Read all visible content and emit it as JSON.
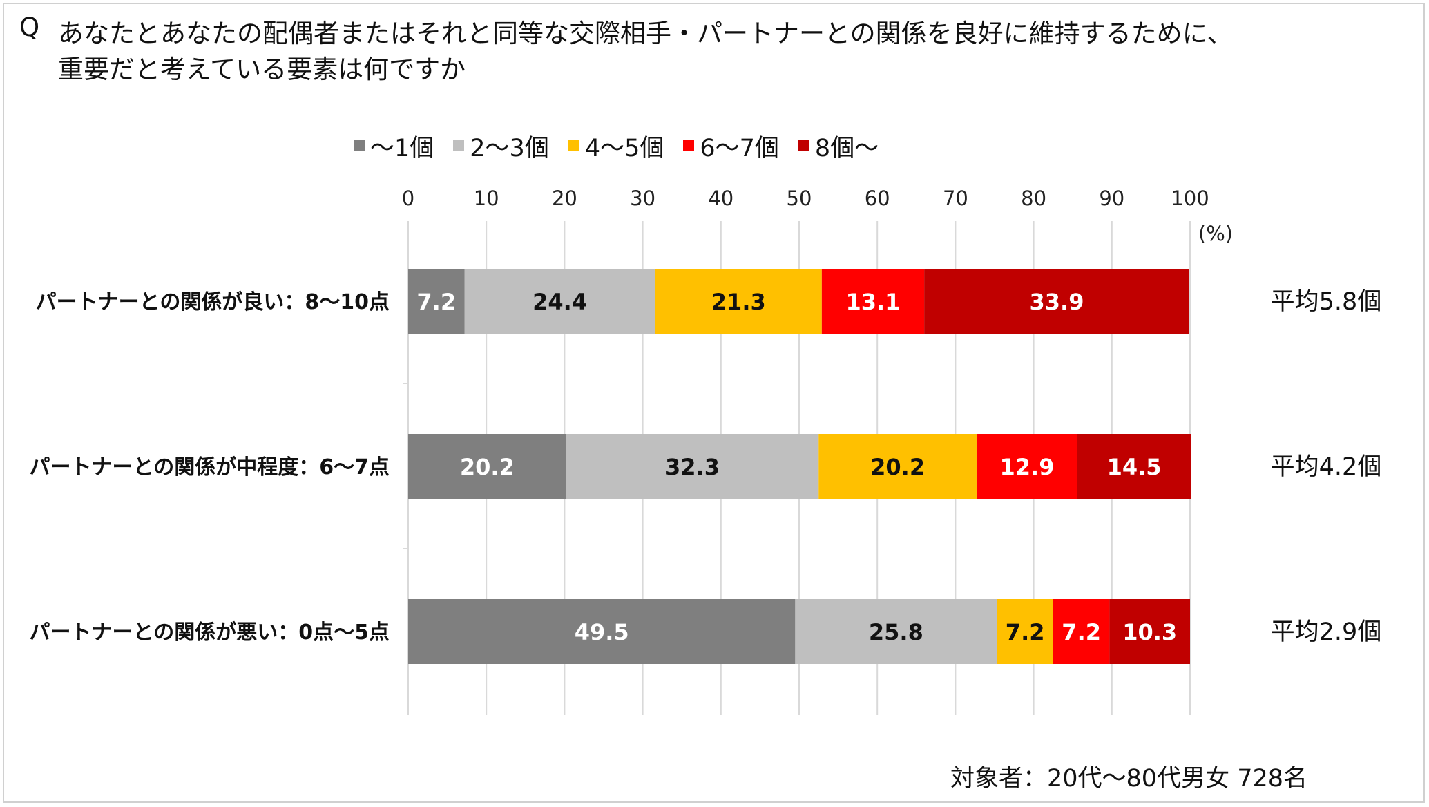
{
  "question": {
    "mark": "Q",
    "line1": "あなたとあなたの配偶者またはそれと同等な交際相手・パートナーとの関係を良好に維持するために、",
    "line2": "重要だと考えている要素は何ですか"
  },
  "footnote": "対象者：20代～80代男女 728名",
  "chart_data": {
    "type": "bar",
    "orientation": "horizontal",
    "stacked": true,
    "title": "",
    "xlabel": "",
    "ylabel": "",
    "unit_label": "(%)",
    "xlim": [
      0,
      100
    ],
    "xticks": [
      0,
      10,
      20,
      30,
      40,
      50,
      60,
      70,
      80,
      90,
      100
    ],
    "grid": true,
    "legend_position": "top",
    "categories": [
      "パートナーとの関係が良い：8～10点",
      "パートナーとの関係が中程度：6～7点",
      "パートナーとの関係が悪い：0点～5点"
    ],
    "series": [
      {
        "name": "～1個",
        "color": "#7f7f7f",
        "label_color": "#ffffff",
        "values": [
          7.2,
          20.2,
          49.5
        ]
      },
      {
        "name": "2～3個",
        "color": "#bfbfbf",
        "label_color": "#111111",
        "values": [
          24.4,
          32.3,
          25.8
        ]
      },
      {
        "name": "4～5個",
        "color": "#ffc000",
        "label_color": "#111111",
        "values": [
          21.3,
          20.2,
          7.2
        ]
      },
      {
        "name": "6～7個",
        "color": "#ff0000",
        "label_color": "#ffffff",
        "values": [
          13.1,
          12.9,
          7.2
        ]
      },
      {
        "name": "8個～",
        "color": "#c00000",
        "label_color": "#ffffff",
        "values": [
          33.9,
          14.5,
          10.3
        ]
      }
    ],
    "averages": [
      "平均5.8個",
      "平均4.2個",
      "平均2.9個"
    ]
  }
}
